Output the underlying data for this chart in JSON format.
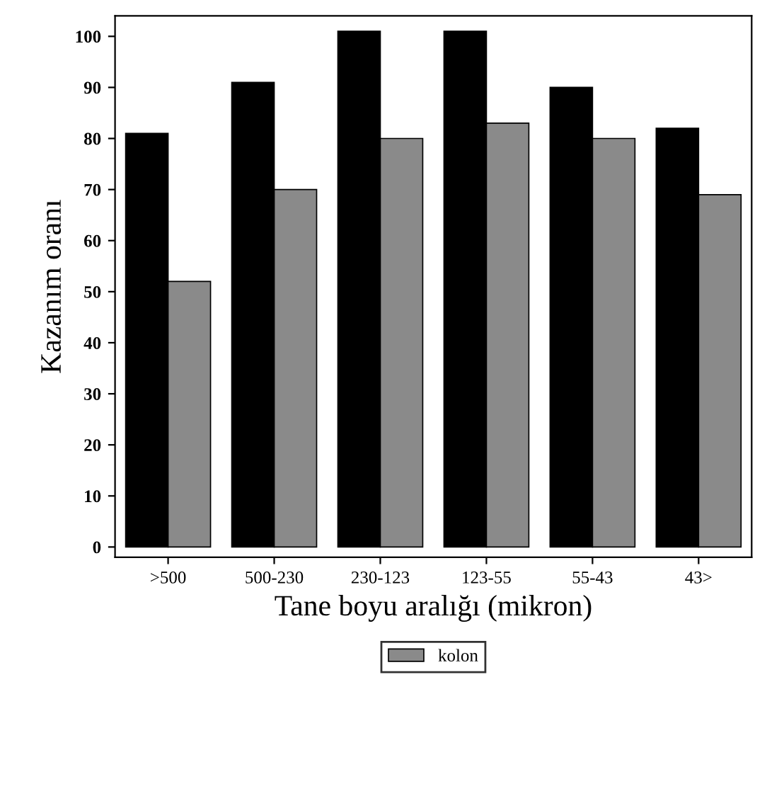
{
  "chart_data": {
    "type": "bar",
    "xlabel": "Tane boyu aralığı (mikron)",
    "ylabel": "Kazanım oranı",
    "categories": [
      ">500",
      "500-230",
      "230-123",
      "123-55",
      "55-43",
      "43>"
    ],
    "series": [
      {
        "color": "#000000",
        "values": [
          81,
          91,
          101,
          101,
          90,
          82
        ]
      },
      {
        "name": "kolon",
        "color": "#8a8a8a",
        "values": [
          52,
          70,
          80,
          83,
          80,
          69
        ]
      }
    ],
    "ylim": [
      -2,
      104
    ],
    "yticks": [
      0,
      10,
      20,
      30,
      40,
      50,
      60,
      70,
      80,
      90,
      100
    ],
    "grid": false,
    "legend": "bottom"
  }
}
